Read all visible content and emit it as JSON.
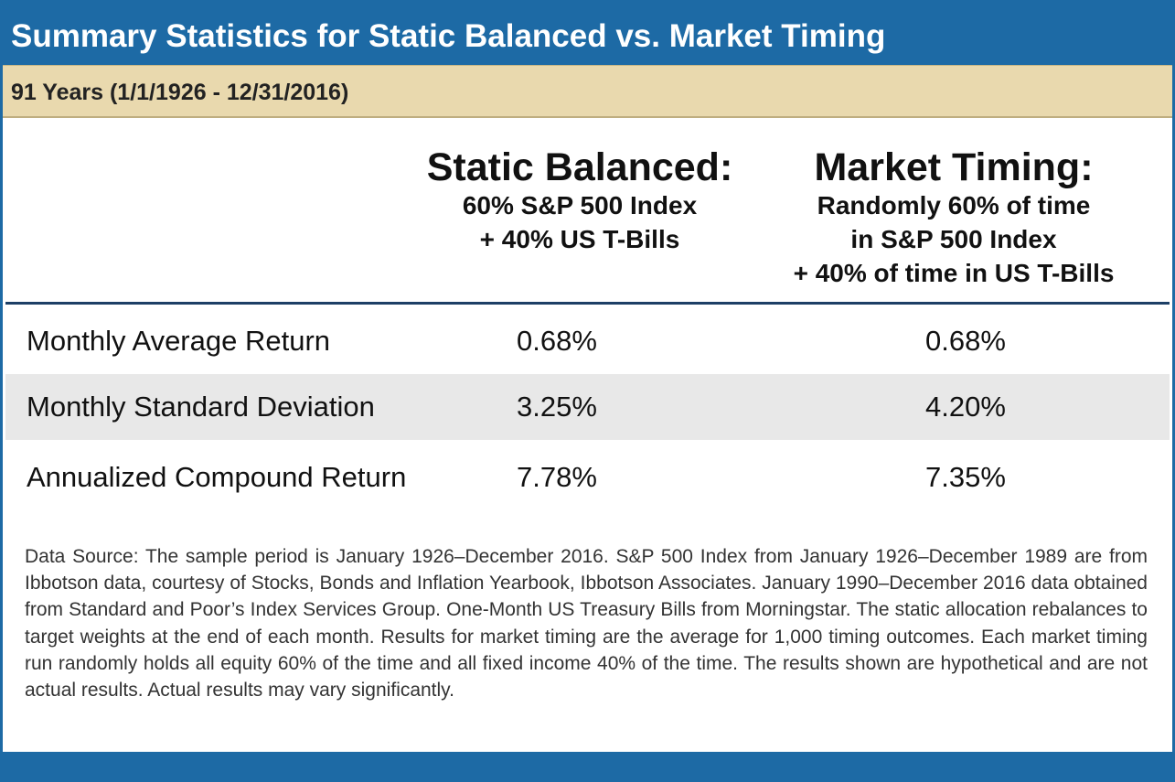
{
  "header": {
    "title": "Summary Statistics for Static Balanced vs. Market Timing",
    "subtitle": "91 Years (1/1/1926 - 12/31/2016)"
  },
  "columns": [
    {
      "title": "Static Balanced:",
      "lines": [
        "60% S&P 500 Index",
        "+ 40% US T-Bills"
      ]
    },
    {
      "title": "Market Timing:",
      "lines": [
        "Randomly 60% of time",
        "in S&P 500 Index",
        "+ 40% of time in US T-Bills"
      ]
    }
  ],
  "colors": {
    "header_blue": "#1d6aa5",
    "subtitle_tan": "#e9d9ae",
    "rule_navy": "#1d3f66",
    "row_shade": "#e8e8e8"
  },
  "chart_data": {
    "type": "table",
    "title": "Summary Statistics for Static Balanced vs. Market Timing",
    "subtitle": "91 Years (1/1/1926 - 12/31/2016)",
    "rows": [
      {
        "label": "Monthly Average Return",
        "static": "0.68%",
        "timing": "0.68%",
        "shaded": false
      },
      {
        "label": "Monthly Standard Deviation",
        "static": "3.25%",
        "timing": "4.20%",
        "shaded": true
      },
      {
        "label": "Annualized Compound Return",
        "static": "7.78%",
        "timing": "7.35%",
        "shaded": false
      }
    ]
  },
  "footnote": "Data Source: The sample period is January 1926–December 2016. S&P 500 Index from January 1926–December 1989 are from Ibbotson data, courtesy of Stocks, Bonds and Inflation Yearbook, Ibbotson Associates. January 1990–December 2016 data obtained from Standard and Poor’s Index Services Group. One-Month US Treasury Bills from Morningstar. The static allocation rebalances to target weights at the end of each month. Results for market timing are the average for 1,000 timing outcomes. Each market timing run randomly holds all equity 60% of the time and all fixed income 40% of the time.  The results shown are hypothetical and are not actual results. Actual results may vary signiﬁcantly."
}
